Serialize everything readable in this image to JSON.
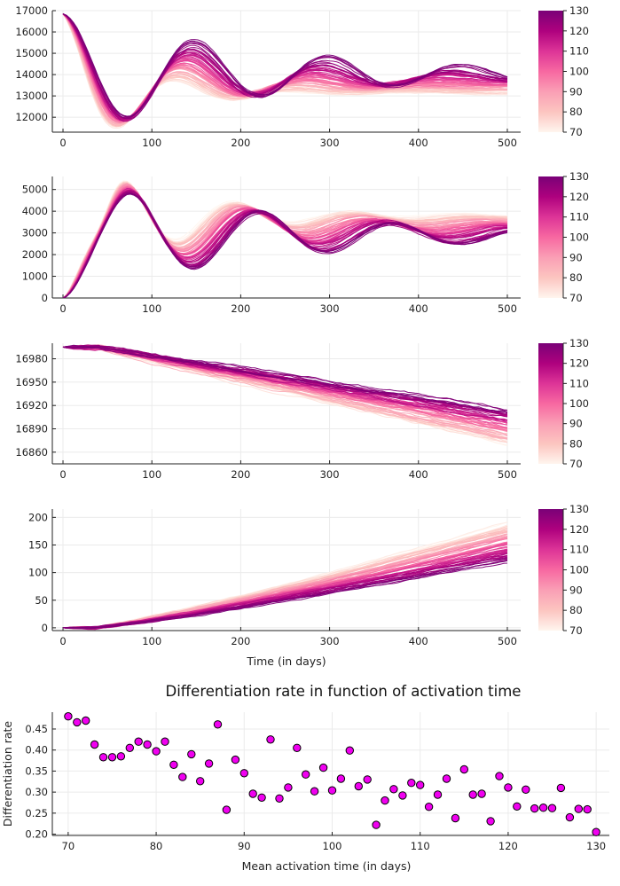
{
  "chart_data": [
    {
      "type": "line",
      "title": "",
      "xlabel": "",
      "ylabel": "",
      "xlim": [
        -12,
        515
      ],
      "ylim": [
        11300,
        17000
      ],
      "xticks": [
        0,
        100,
        200,
        300,
        400,
        500
      ],
      "yticks": [
        12000,
        13000,
        14000,
        15000,
        16000,
        17000
      ],
      "series_param": [
        70,
        130
      ],
      "series_count": 60,
      "model": {
        "kind": "oscillating",
        "start": 16850,
        "eq_low_param": 13100,
        "eq_high_param": 14050,
        "amp_low_param": -2450,
        "amp_high_param": -1600,
        "decay_low_param": 0.014,
        "decay_high_param": 0.0042,
        "period_low_param": 130,
        "period_high_param": 150,
        "noise": 90
      },
      "colorbar": {
        "min": 70,
        "max": 130,
        "ticks": [
          70,
          80,
          90,
          100,
          110,
          120,
          130
        ]
      },
      "grid": true,
      "legend": "none"
    },
    {
      "type": "line",
      "title": "",
      "xlabel": "",
      "ylabel": "",
      "xlim": [
        -12,
        515
      ],
      "ylim": [
        0,
        5600
      ],
      "xticks": [
        0,
        100,
        200,
        300,
        400,
        500
      ],
      "yticks": [
        0,
        1000,
        2000,
        3000,
        4000,
        5000
      ],
      "series_param": [
        70,
        130
      ],
      "series_count": 60,
      "model": {
        "kind": "oscillating",
        "start": 0,
        "eq_low_param": 3800,
        "eq_high_param": 2850,
        "amp_low_param": -3800,
        "amp_high_param": -2850,
        "decay_low_param": 0.0095,
        "decay_high_param": 0.0042,
        "period_low_param": 130,
        "period_high_param": 150,
        "overshoot_low_param": 1600,
        "overshoot_high_param": 400,
        "noise": 80
      },
      "colorbar": {
        "min": 70,
        "max": 130,
        "ticks": [
          70,
          80,
          90,
          100,
          110,
          120,
          130
        ]
      },
      "grid": true,
      "legend": "none"
    },
    {
      "type": "line",
      "title": "",
      "xlabel": "",
      "ylabel": "",
      "xlim": [
        -12,
        515
      ],
      "ylim": [
        16845,
        17000
      ],
      "xticks": [
        0,
        100,
        200,
        300,
        400,
        500
      ],
      "yticks": [
        16860,
        16890,
        16920,
        16950,
        16980
      ],
      "series_param": [
        70,
        130
      ],
      "series_count": 60,
      "model": {
        "kind": "decline",
        "start": 16995,
        "end_low_param": 16870,
        "end_high_param": 16915,
        "onset": 40,
        "noise": 4
      },
      "colorbar": {
        "min": 70,
        "max": 130,
        "ticks": [
          70,
          80,
          90,
          100,
          110,
          120,
          130
        ]
      },
      "grid": true,
      "legend": "none"
    },
    {
      "type": "line",
      "title": "",
      "xlabel": "Time (in days)",
      "ylabel": "",
      "xlim": [
        -12,
        515
      ],
      "ylim": [
        -5,
        215
      ],
      "xticks": [
        0,
        100,
        200,
        300,
        400,
        500
      ],
      "yticks": [
        0,
        50,
        100,
        150,
        200
      ],
      "series_param": [
        70,
        130
      ],
      "series_count": 60,
      "model": {
        "kind": "growth",
        "start": 0,
        "end_low_param": 190,
        "end_high_param": 120,
        "onset": 35,
        "noise": 3
      },
      "colorbar": {
        "min": 70,
        "max": 130,
        "ticks": [
          70,
          80,
          90,
          100,
          110,
          120,
          130
        ]
      },
      "grid": true,
      "legend": "none"
    },
    {
      "type": "scatter",
      "title": "Differentiation rate in function of activation time",
      "xlabel": "Mean activation time (in days)",
      "ylabel": "Differentiation rate",
      "xlim": [
        68.2,
        131.5
      ],
      "ylim": [
        0.197,
        0.49
      ],
      "xticks": [
        70,
        80,
        90,
        100,
        110,
        120,
        130
      ],
      "yticks": [
        0.2,
        0.25,
        0.3,
        0.35,
        0.4,
        0.45
      ],
      "point_color": "#f000f0",
      "x": [
        70,
        71,
        72,
        73,
        74,
        75,
        76,
        77,
        78,
        79,
        80,
        81,
        82,
        83,
        84,
        85,
        86,
        87,
        88,
        89,
        90,
        91,
        92,
        93,
        94,
        95,
        96,
        97,
        98,
        99,
        100,
        101,
        102,
        103,
        104,
        105,
        106,
        107,
        108,
        109,
        110,
        111,
        112,
        113,
        114,
        115,
        116,
        117,
        118,
        119,
        120,
        121,
        122,
        123,
        124,
        125,
        126,
        127,
        128,
        129,
        130
      ],
      "y": [
        0.48,
        0.466,
        0.47,
        0.413,
        0.383,
        0.383,
        0.385,
        0.405,
        0.42,
        0.413,
        0.397,
        0.42,
        0.365,
        0.336,
        0.39,
        0.326,
        0.368,
        0.461,
        0.258,
        0.377,
        0.345,
        0.296,
        0.287,
        0.425,
        0.285,
        0.311,
        0.405,
        0.342,
        0.302,
        0.358,
        0.304,
        0.332,
        0.399,
        0.314,
        0.33,
        0.222,
        0.28,
        0.307,
        0.292,
        0.322,
        0.317,
        0.265,
        0.294,
        0.332,
        0.238,
        0.354,
        0.294,
        0.296,
        0.231,
        0.338,
        0.311,
        0.266,
        0.306,
        0.261,
        0.263,
        0.262,
        0.31,
        0.24,
        0.26,
        0.259,
        0.205
      ],
      "grid": true,
      "legend": "none"
    }
  ],
  "colormap": [
    "#fff5ee",
    "#fcc5c0",
    "#fa9fb5",
    "#f768a1",
    "#dd3497",
    "#ae017e",
    "#7a0177"
  ]
}
